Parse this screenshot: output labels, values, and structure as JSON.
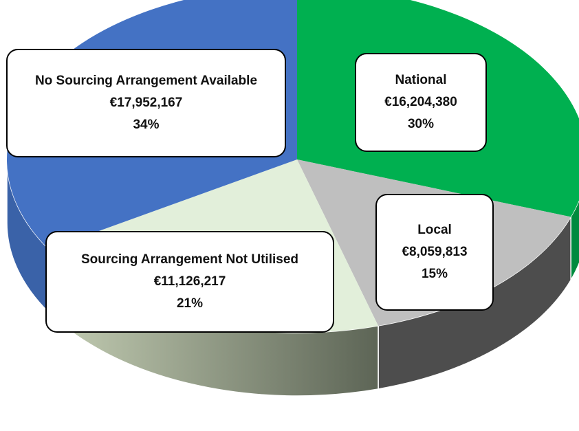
{
  "chart_data": {
    "type": "pie3d",
    "categories": [
      "National",
      "Local",
      "Sourcing Arrangement Not Utilised",
      "No Sourcing Arrangement Available"
    ],
    "values": [
      16204380,
      8059813,
      11126217,
      17952167
    ],
    "value_labels": [
      "€16,204,380",
      "€8,059,813",
      "€11,126,217",
      "€17,952,167"
    ],
    "percentages": [
      30,
      15,
      21,
      34
    ],
    "percentage_labels": [
      "30%",
      "15%",
      "21%",
      "34%"
    ],
    "colors": [
      "#00b050",
      "#bfbfbf",
      "#e2efda",
      "#4472c4"
    ],
    "side_colors": [
      "#008a3e",
      "#4d4d4d",
      "#8e9a80",
      "#3a62a8"
    ]
  }
}
